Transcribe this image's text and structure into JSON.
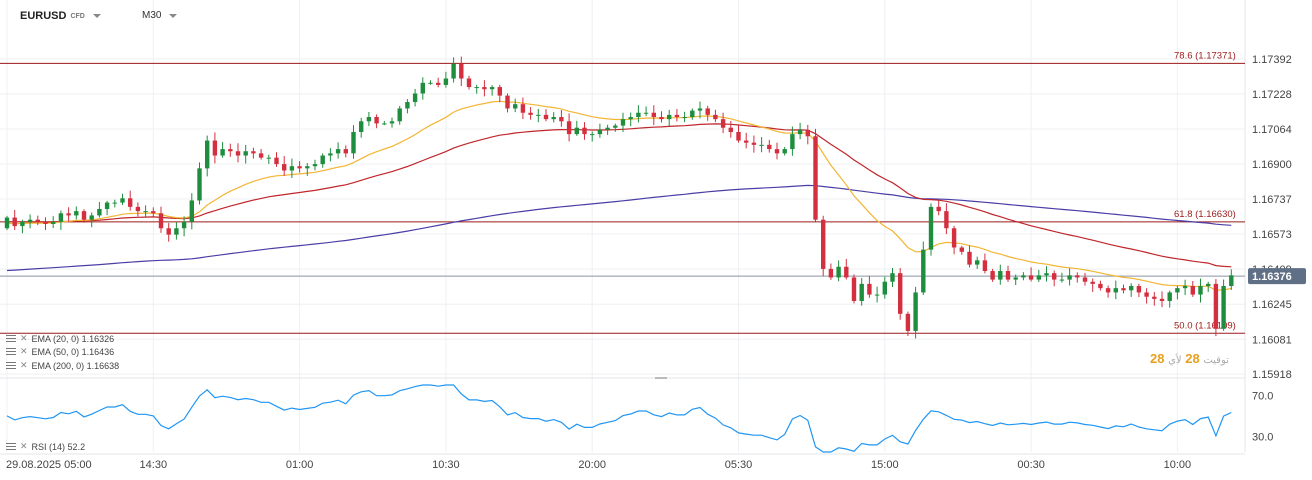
{
  "header": {
    "symbol": "EURUSD",
    "symbol_tag": "CFD",
    "timeframe": "M30"
  },
  "colors": {
    "up": "#1e8e3e",
    "down": "#d32f3f",
    "ema20": "#f3b534",
    "ema50": "#c0262b",
    "ema200": "#4a3ea6",
    "rsi": "#2196f3",
    "level": "#9c1a1a",
    "price_tag": "#5f6f86"
  },
  "legend": [
    {
      "label": "EMA (20, 0) 1.16326"
    },
    {
      "label": "EMA (50, 0) 1.16436"
    },
    {
      "label": "EMA (200, 0) 1.16638"
    }
  ],
  "rsi_legend": "RSI (14) 52.2",
  "watermark": {
    "main": "28",
    "sub": "توقيت",
    "main2": "28",
    "sub2": "لأي"
  },
  "chart_data": {
    "type": "candlestick",
    "symbol": "EURUSD",
    "timeframe": "M30",
    "price_axis": {
      "ylim": [
        1.159,
        1.1748
      ],
      "ticks": [
        "1.17392",
        "1.17228",
        "1.17064",
        "1.16900",
        "1.16737",
        "1.16573",
        "1.16409",
        "1.16245",
        "1.16081",
        "1.15918"
      ],
      "tick_values": [
        1.17392,
        1.17228,
        1.17064,
        1.169,
        1.16737,
        1.16573,
        1.16409,
        1.16245,
        1.16081,
        1.15918
      ]
    },
    "time_axis": {
      "labels": [
        "29.08.2025  05:00",
        "14:30",
        "01:00",
        "10:30",
        "20:00",
        "05:30",
        "15:00",
        "00:30",
        "10:00"
      ],
      "label_bars": [
        0,
        19,
        38,
        57,
        76,
        95,
        114,
        133,
        152
      ]
    },
    "current_price": {
      "value": 1.16376,
      "label": "1.16376"
    },
    "levels": [
      {
        "label": "78.6 (1.17371)",
        "value": 1.17371
      },
      {
        "label": "61.8 (1.16630)",
        "value": 1.1663
      },
      {
        "label": "50.0 (1.16109)",
        "value": 1.16109
      }
    ],
    "close": [
      1.1665,
      1.1661,
      1.1663,
      1.1664,
      1.1663,
      1.1662,
      1.1663,
      1.1667,
      1.1666,
      1.1668,
      1.1664,
      1.1666,
      1.1669,
      1.1672,
      1.1672,
      1.1674,
      1.167,
      1.1668,
      1.1668,
      1.1667,
      1.166,
      1.1657,
      1.166,
      1.1663,
      1.1673,
      1.1688,
      1.1701,
      1.1694,
      1.1697,
      1.1696,
      1.1694,
      1.1696,
      1.1695,
      1.1693,
      1.1693,
      1.169,
      1.1687,
      1.1689,
      1.1688,
      1.1689,
      1.169,
      1.1694,
      1.1695,
      1.1697,
      1.1695,
      1.1705,
      1.171,
      1.1712,
      1.1709,
      1.1709,
      1.171,
      1.1716,
      1.1719,
      1.1723,
      1.1728,
      1.1728,
      1.1727,
      1.173,
      1.1737,
      1.173,
      1.1726,
      1.1726,
      1.1725,
      1.1726,
      1.1722,
      1.1716,
      1.1718,
      1.1714,
      1.1713,
      1.1713,
      1.1711,
      1.1712,
      1.171,
      1.1704,
      1.1707,
      1.1704,
      1.1704,
      1.1706,
      1.1707,
      1.1708,
      1.1711,
      1.1712,
      1.1714,
      1.1714,
      1.1712,
      1.1711,
      1.1713,
      1.1712,
      1.1712,
      1.1715,
      1.1716,
      1.1713,
      1.1711,
      1.1707,
      1.1705,
      1.1701,
      1.17,
      1.1699,
      1.1699,
      1.1697,
      1.1695,
      1.1697,
      1.1704,
      1.1706,
      1.1703,
      1.1664,
      1.1641,
      1.1637,
      1.1642,
      1.1637,
      1.1626,
      1.1634,
      1.1629,
      1.1629,
      1.1635,
      1.1639,
      1.162,
      1.1612,
      1.163,
      1.165,
      1.167,
      1.1668,
      1.166,
      1.1651,
      1.1649,
      1.1643,
      1.1645,
      1.164,
      1.1636,
      1.164,
      1.1636,
      1.1637,
      1.1638,
      1.1636,
      1.1638,
      1.1639,
      1.1636,
      1.1636,
      1.1638,
      1.1637,
      1.1635,
      1.1634,
      1.1632,
      1.163,
      1.1632,
      1.1631,
      1.1633,
      1.163,
      1.1628,
      1.1627,
      1.1626,
      1.163,
      1.1632,
      1.1633,
      1.1629,
      1.1633,
      1.1634,
      1.1613,
      1.1633,
      1.1638
    ],
    "series": [
      {
        "name": "EMA (20, 0)",
        "last": 1.16326
      },
      {
        "name": "EMA (50, 0)",
        "last": 1.16436
      },
      {
        "name": "EMA (200, 0)",
        "last": 1.16638
      }
    ],
    "rsi": {
      "name": "RSI (14)",
      "last": 52.2,
      "ylim": [
        15,
        80
      ],
      "ticks": [
        "70.0",
        "30.0"
      ],
      "tick_values": [
        70,
        30
      ]
    }
  }
}
